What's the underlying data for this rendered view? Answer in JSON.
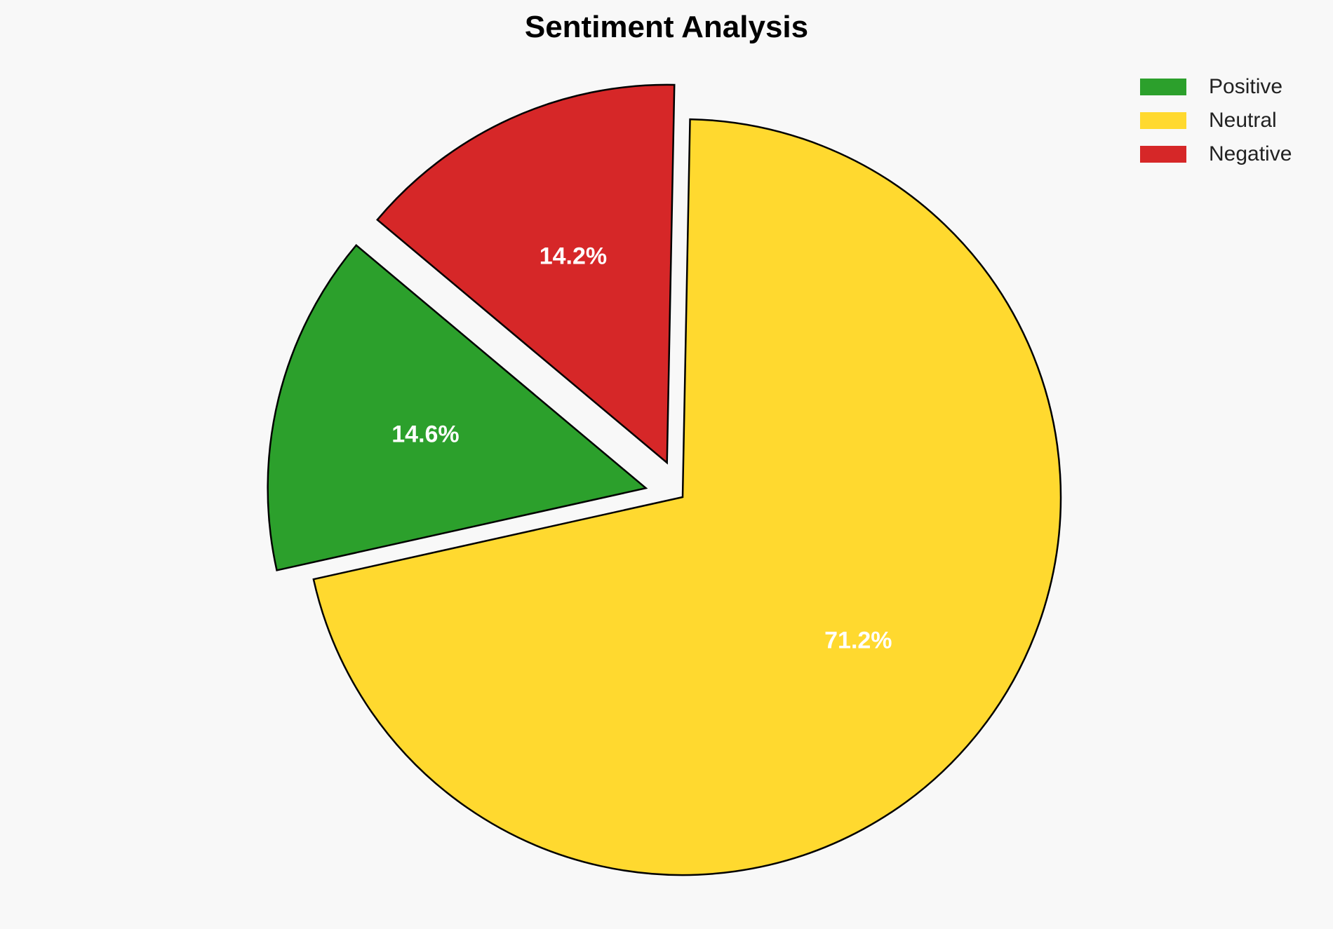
{
  "chart_data": {
    "type": "pie",
    "title": "Sentiment Analysis",
    "categories": [
      "Positive",
      "Neutral",
      "Negative"
    ],
    "values": [
      14.6,
      71.2,
      14.2
    ],
    "labels": [
      "14.6%",
      "71.2%",
      "14.2%"
    ],
    "colors": [
      "#2ca02c",
      "#ffd92f",
      "#d62728"
    ],
    "explode": [
      0.1,
      0,
      0.1
    ],
    "start_angle": 140,
    "direction": "counterclockwise",
    "legend_position": "top-right"
  }
}
